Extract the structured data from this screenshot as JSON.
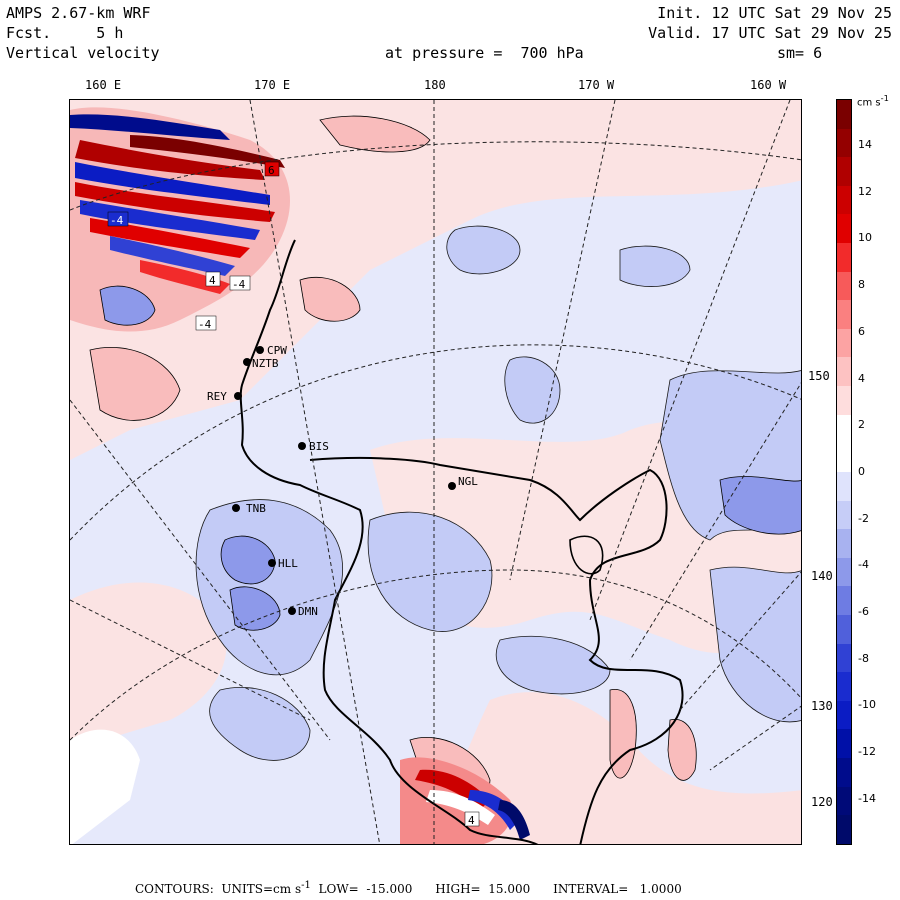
{
  "header": {
    "model": "AMPS 2.67-km WRF",
    "forecast": "Fcst.     5 h",
    "variable": "Vertical velocity",
    "init": "Init. 12 UTC Sat 29 Nov 25",
    "valid": "Valid. 17 UTC Sat 29 Nov 25",
    "level": "at pressure =  700 hPa",
    "smooth": "sm= 6"
  },
  "top_axis": [
    "160 E",
    "170 E",
    "180",
    "170 W",
    "160 W"
  ],
  "right_axis": [
    "150 W",
    "140 W",
    "130 W",
    "120 W"
  ],
  "stations": [
    "CPW",
    "NZTB",
    "REY",
    "BIS",
    "NGL",
    "TNB",
    "HLL",
    "DMN"
  ],
  "contour_labels": [
    "6",
    "-4",
    "4",
    "-4",
    "-4",
    "4"
  ],
  "colorbar": {
    "units": "cm s",
    "units_exp": "-1",
    "labels": [
      "14",
      "12",
      "10",
      "8",
      "6",
      "4",
      "2",
      "0",
      "-2",
      "-4",
      "-6",
      "-8",
      "-10",
      "-12",
      "-14"
    ],
    "colors": [
      "#7a0000",
      "#940000",
      "#b00000",
      "#cc0000",
      "#e00000",
      "#f22b2b",
      "#f75a5a",
      "#fa8080",
      "#fca3a3",
      "#fdc2c2",
      "#fedddd",
      "#ffffff",
      "#ffffff",
      "#dfe3fc",
      "#c6cdf7",
      "#a8b2f0",
      "#8d99ea",
      "#6e7ce3",
      "#5060db",
      "#3041d4",
      "#1a2ccf",
      "#0b1cc4",
      "#0010a8",
      "#000c8c",
      "#000a78",
      "#000a6a"
    ]
  },
  "footer": {
    "contours": "CONTOURS:",
    "units_label": "UNITS=cm s",
    "units_exp": "-1",
    "low": "LOW=  -15.000",
    "high": "HIGH=  15.000",
    "interval": "INTERVAL=   1.0000"
  }
}
